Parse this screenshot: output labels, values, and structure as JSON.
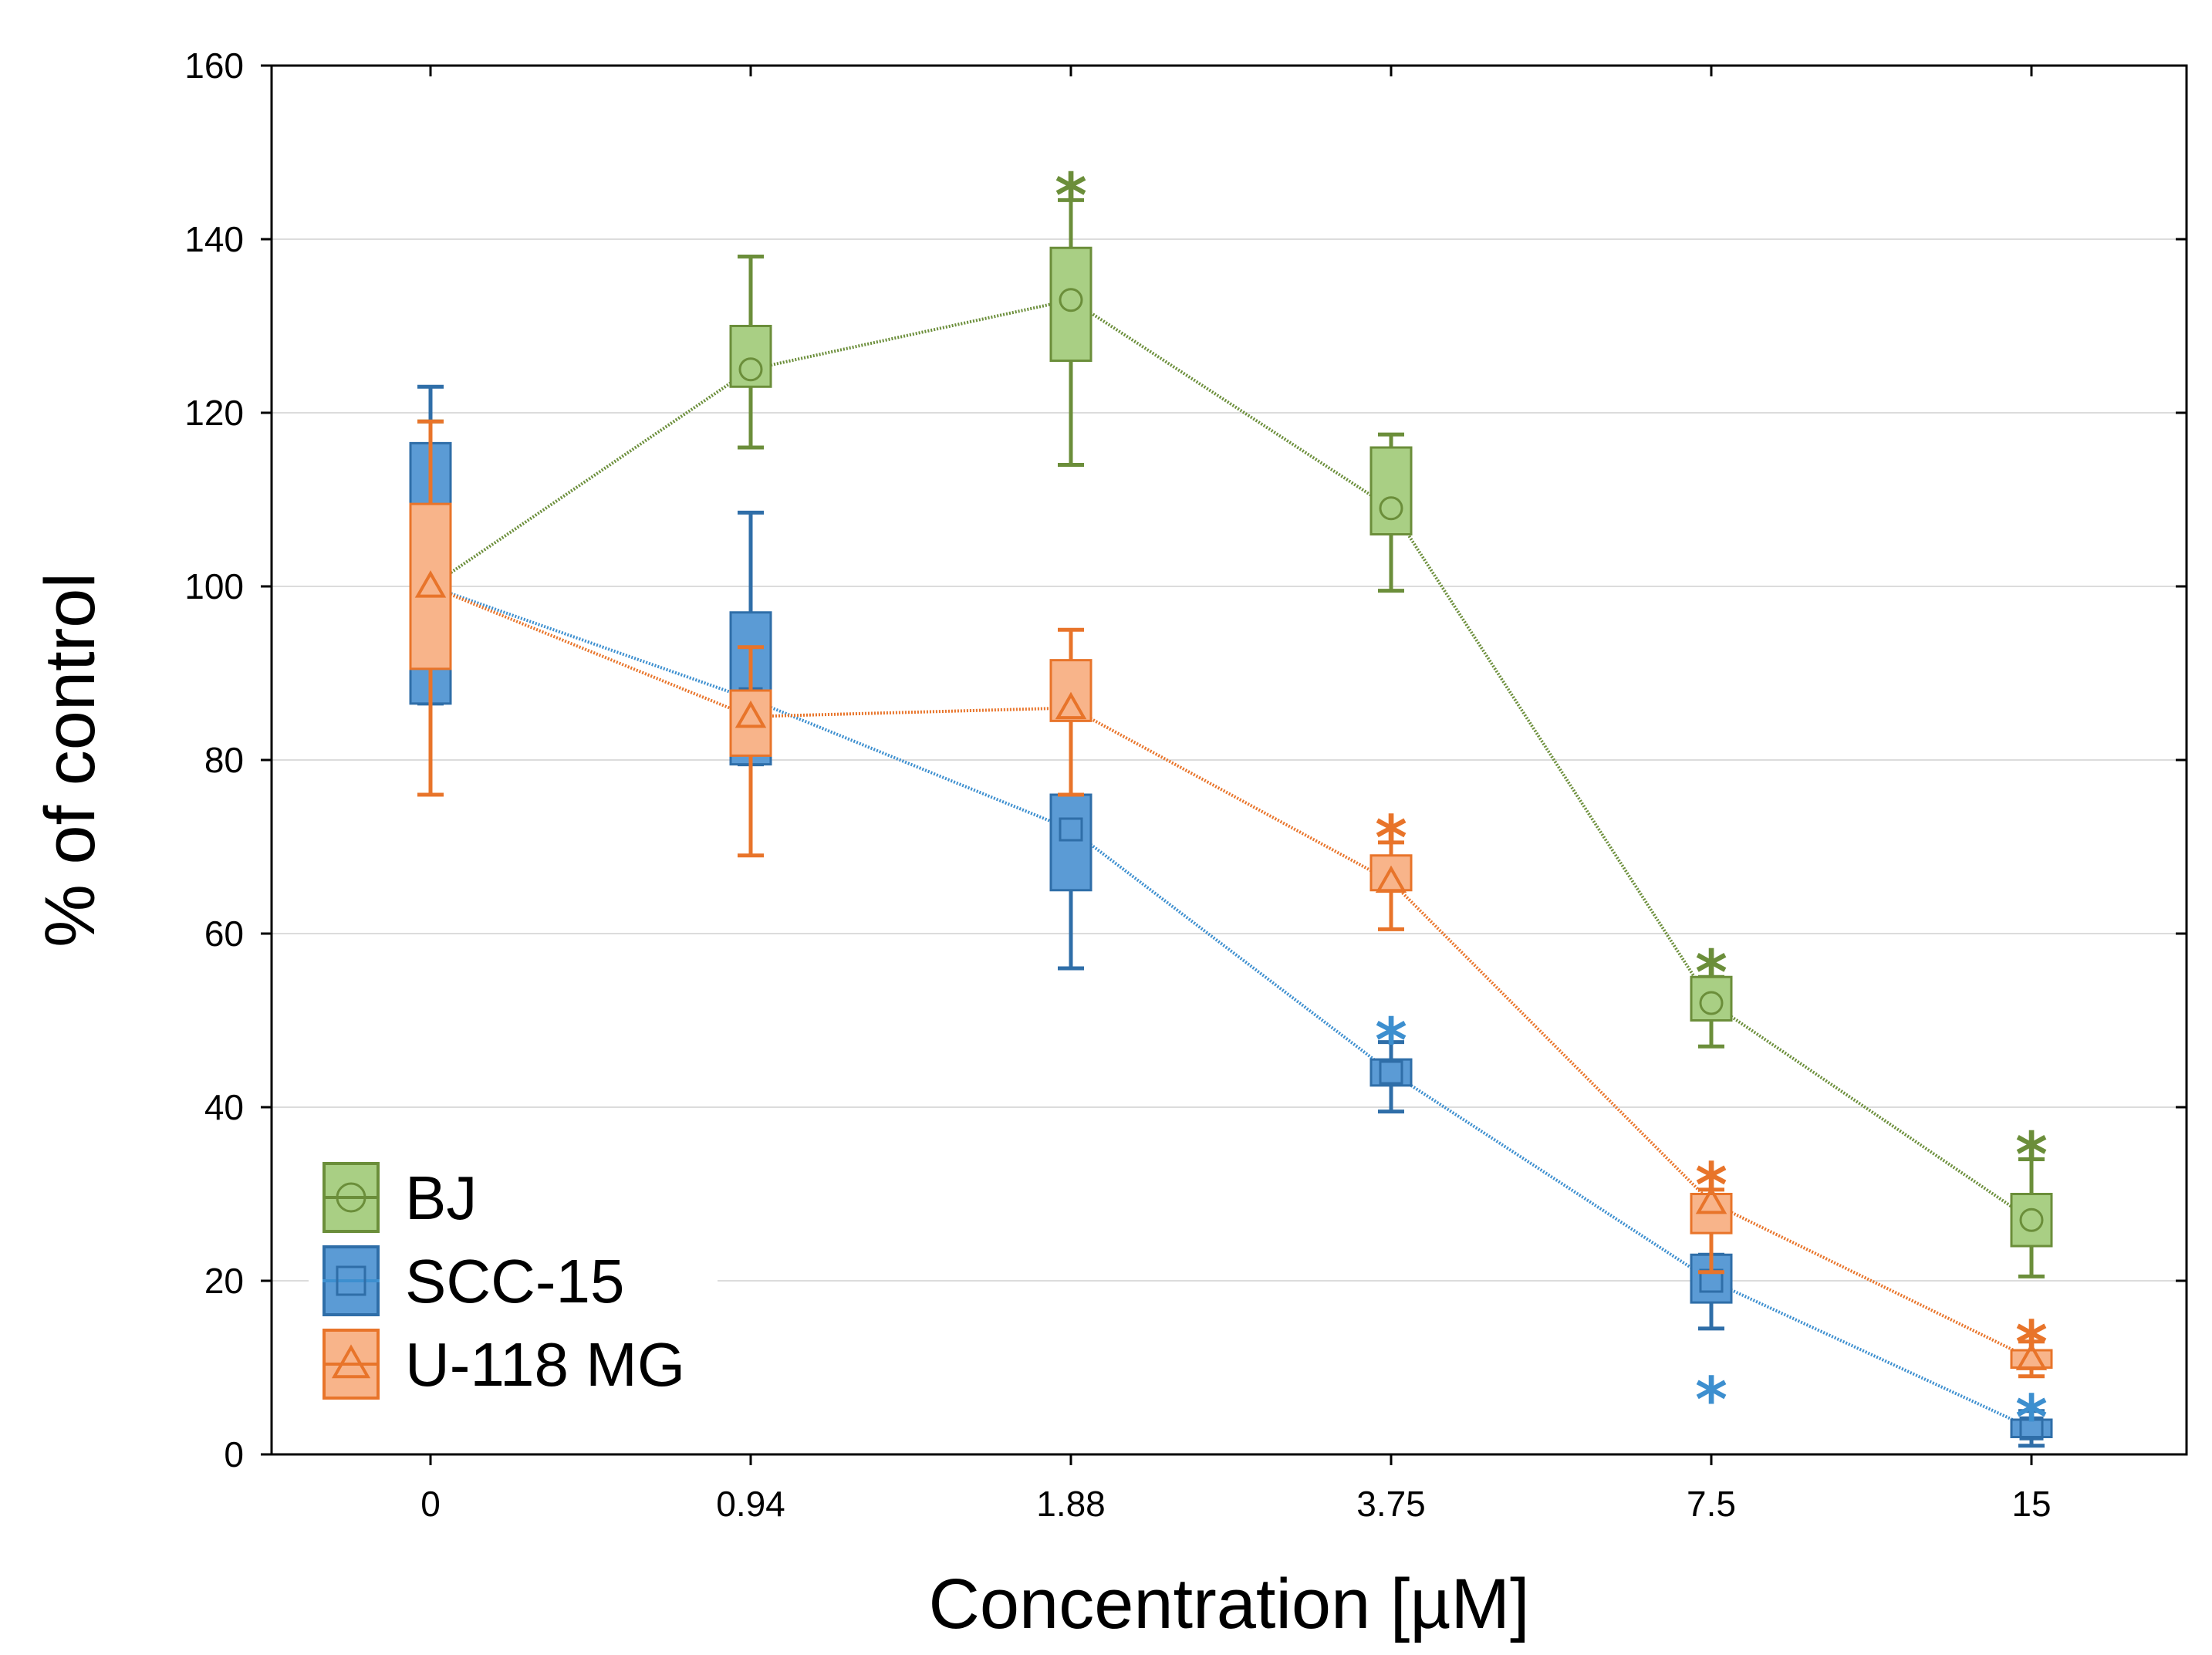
{
  "chart_data": {
    "type": "box",
    "title": "",
    "xlabel": "Concentration [µM]",
    "ylabel": "% of control",
    "categories": [
      "0",
      "0.94",
      "1.88",
      "3.75",
      "7.5",
      "15"
    ],
    "ylim": [
      0,
      160
    ],
    "yticks": [
      0,
      20,
      40,
      60,
      80,
      100,
      120,
      140,
      160
    ],
    "grid": true,
    "legend_position": "bottom-left",
    "significance_marker": "*",
    "series": [
      {
        "name": "BJ",
        "marker": "circle",
        "line_color": "#6b8e3a",
        "box_fill": "#a9cf84",
        "box_stroke": "#6b8e3a",
        "means": [
          100,
          125,
          133,
          109,
          52,
          27
        ],
        "box_low": [
          90,
          123,
          126,
          106,
          50,
          24
        ],
        "box_high": [
          110,
          130,
          139,
          116,
          55,
          30
        ],
        "whisker_low": [
          76,
          116,
          114,
          99.5,
          47,
          20.5
        ],
        "whisker_high": [
          119,
          138,
          144.5,
          117.5,
          55,
          34
        ],
        "significant": [
          false,
          false,
          true,
          false,
          true,
          true
        ]
      },
      {
        "name": "SCC-15",
        "marker": "square",
        "line_color": "#3d8fcf",
        "box_fill": "#5b9bd5",
        "box_stroke": "#2f6ea8",
        "means": [
          100,
          87,
          72,
          44,
          20,
          3
        ],
        "box_low": [
          86.5,
          79.5,
          65,
          42.5,
          17.5,
          2
        ],
        "box_high": [
          116.5,
          97,
          76,
          45.5,
          23,
          4
        ],
        "whisker_low": [
          86.5,
          79.5,
          56,
          39.5,
          14.5,
          1
        ],
        "whisker_high": [
          123,
          108.5,
          76,
          47.5,
          23,
          5
        ],
        "significant": [
          false,
          false,
          false,
          true,
          true,
          true
        ]
      },
      {
        "name": "U-118 MG",
        "marker": "triangle",
        "line_color": "#e8742a",
        "box_fill": "#f8b48a",
        "box_stroke": "#e8742a",
        "means": [
          100,
          85,
          86,
          66,
          29,
          11
        ],
        "box_low": [
          90.5,
          80.5,
          84.5,
          65,
          25.5,
          10
        ],
        "box_high": [
          109.5,
          88,
          91.5,
          69,
          30,
          12
        ],
        "whisker_low": [
          76,
          69,
          76,
          60.5,
          21,
          9
        ],
        "whisker_high": [
          119,
          93,
          95,
          70.5,
          30.5,
          13
        ],
        "significant": [
          false,
          false,
          false,
          true,
          true,
          true
        ]
      }
    ]
  }
}
